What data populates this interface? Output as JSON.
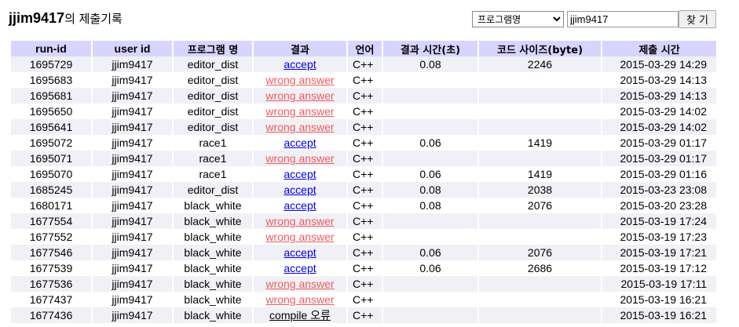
{
  "header": {
    "user_id": "jjim9417",
    "title_suffix": "의 제출기록"
  },
  "search": {
    "select_value": "프로그램명",
    "input_value": "jjim9417",
    "button_label": "찾 기"
  },
  "columns": [
    "run-id",
    "user id",
    "프로그램 명",
    "결과",
    "언어",
    "결과 시간(초)",
    "코드 사이즈(byte)",
    "제출 시간"
  ],
  "rows": [
    {
      "run_id": "1695729",
      "user": "jjim9417",
      "program": "editor_dist",
      "result": "accept",
      "lang": "C++",
      "time": "0.08",
      "size": "2246",
      "submitted": "2015-03-29 14:29"
    },
    {
      "run_id": "1695683",
      "user": "jjim9417",
      "program": "editor_dist",
      "result": "wrong answer",
      "lang": "C++",
      "time": "",
      "size": "",
      "submitted": "2015-03-29 14:13"
    },
    {
      "run_id": "1695681",
      "user": "jjim9417",
      "program": "editor_dist",
      "result": "wrong answer",
      "lang": "C++",
      "time": "",
      "size": "",
      "submitted": "2015-03-29 14:13"
    },
    {
      "run_id": "1695650",
      "user": "jjim9417",
      "program": "editor_dist",
      "result": "wrong answer",
      "lang": "C++",
      "time": "",
      "size": "",
      "submitted": "2015-03-29 14:02"
    },
    {
      "run_id": "1695641",
      "user": "jjim9417",
      "program": "editor_dist",
      "result": "wrong answer",
      "lang": "C++",
      "time": "",
      "size": "",
      "submitted": "2015-03-29 14:02"
    },
    {
      "run_id": "1695072",
      "user": "jjim9417",
      "program": "race1",
      "result": "accept",
      "lang": "C++",
      "time": "0.06",
      "size": "1419",
      "submitted": "2015-03-29 01:17"
    },
    {
      "run_id": "1695071",
      "user": "jjim9417",
      "program": "race1",
      "result": "wrong answer",
      "lang": "C++",
      "time": "",
      "size": "",
      "submitted": "2015-03-29 01:17"
    },
    {
      "run_id": "1695070",
      "user": "jjim9417",
      "program": "race1",
      "result": "accept",
      "lang": "C++",
      "time": "0.06",
      "size": "1419",
      "submitted": "2015-03-29 01:16"
    },
    {
      "run_id": "1685245",
      "user": "jjim9417",
      "program": "editor_dist",
      "result": "accept",
      "lang": "C++",
      "time": "0.08",
      "size": "2038",
      "submitted": "2015-03-23 23:08"
    },
    {
      "run_id": "1680171",
      "user": "jjim9417",
      "program": "black_white",
      "result": "accept",
      "lang": "C++",
      "time": "0.08",
      "size": "2076",
      "submitted": "2015-03-20 23:28"
    },
    {
      "run_id": "1677554",
      "user": "jjim9417",
      "program": "black_white",
      "result": "wrong answer",
      "lang": "C++",
      "time": "",
      "size": "",
      "submitted": "2015-03-19 17:24"
    },
    {
      "run_id": "1677552",
      "user": "jjim9417",
      "program": "black_white",
      "result": "wrong answer",
      "lang": "C++",
      "time": "",
      "size": "",
      "submitted": "2015-03-19 17:23"
    },
    {
      "run_id": "1677546",
      "user": "jjim9417",
      "program": "black_white",
      "result": "accept",
      "lang": "C++",
      "time": "0.06",
      "size": "2076",
      "submitted": "2015-03-19 17:21"
    },
    {
      "run_id": "1677539",
      "user": "jjim9417",
      "program": "black_white",
      "result": "accept",
      "lang": "C++",
      "time": "0.06",
      "size": "2686",
      "submitted": "2015-03-19 17:12"
    },
    {
      "run_id": "1677536",
      "user": "jjim9417",
      "program": "black_white",
      "result": "wrong answer",
      "lang": "C++",
      "time": "",
      "size": "",
      "submitted": "2015-03-19 17:11"
    },
    {
      "run_id": "1677437",
      "user": "jjim9417",
      "program": "black_white",
      "result": "wrong answer",
      "lang": "C++",
      "time": "",
      "size": "",
      "submitted": "2015-03-19 16:21"
    },
    {
      "run_id": "1677436",
      "user": "jjim9417",
      "program": "black_white",
      "result": "compile 오류",
      "lang": "C++",
      "time": "",
      "size": "",
      "submitted": "2015-03-19 16:21"
    }
  ],
  "colors": {
    "header_bg": "#d7d5ff",
    "stripe_bg": "#f0f0f6",
    "accept": "#0000ee",
    "wrong_answer": "#f05a5a"
  }
}
